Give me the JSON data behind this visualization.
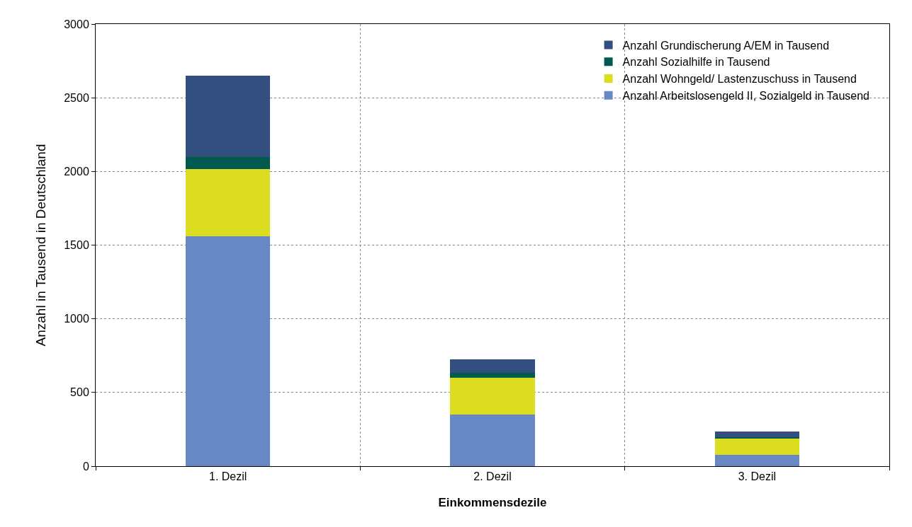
{
  "chart_data": {
    "type": "bar",
    "stacked": true,
    "xlabel": "Einkommensdezile",
    "ylabel": "Anzahl in Tausend in Deutschland",
    "categories": [
      "1. Dezil",
      "2. Dezil",
      "3. Dezil"
    ],
    "series": [
      {
        "name": "Anzahl Arbeitslosengeld II, Sozialgeld in Tausend",
        "color": "#6787c5",
        "values": [
          1560,
          350,
          77
        ]
      },
      {
        "name": "Anzahl Wohngeld/ Lastenzuschuss in Tausend",
        "color": "#dcdc20",
        "values": [
          456,
          250,
          110
        ]
      },
      {
        "name": "Anzahl Sozialhilfe in Tausend",
        "color": "#005a50",
        "values": [
          82,
          34,
          10
        ]
      },
      {
        "name": "Anzahl Grundischerung A/EM in Tausend",
        "color": "#334f80",
        "values": [
          552,
          91,
          38
        ]
      }
    ],
    "ylim": [
      0,
      3000
    ],
    "yticks": [
      0,
      500,
      1000,
      1500,
      2000,
      2500,
      3000
    ],
    "grid": true,
    "legend": "top right"
  }
}
